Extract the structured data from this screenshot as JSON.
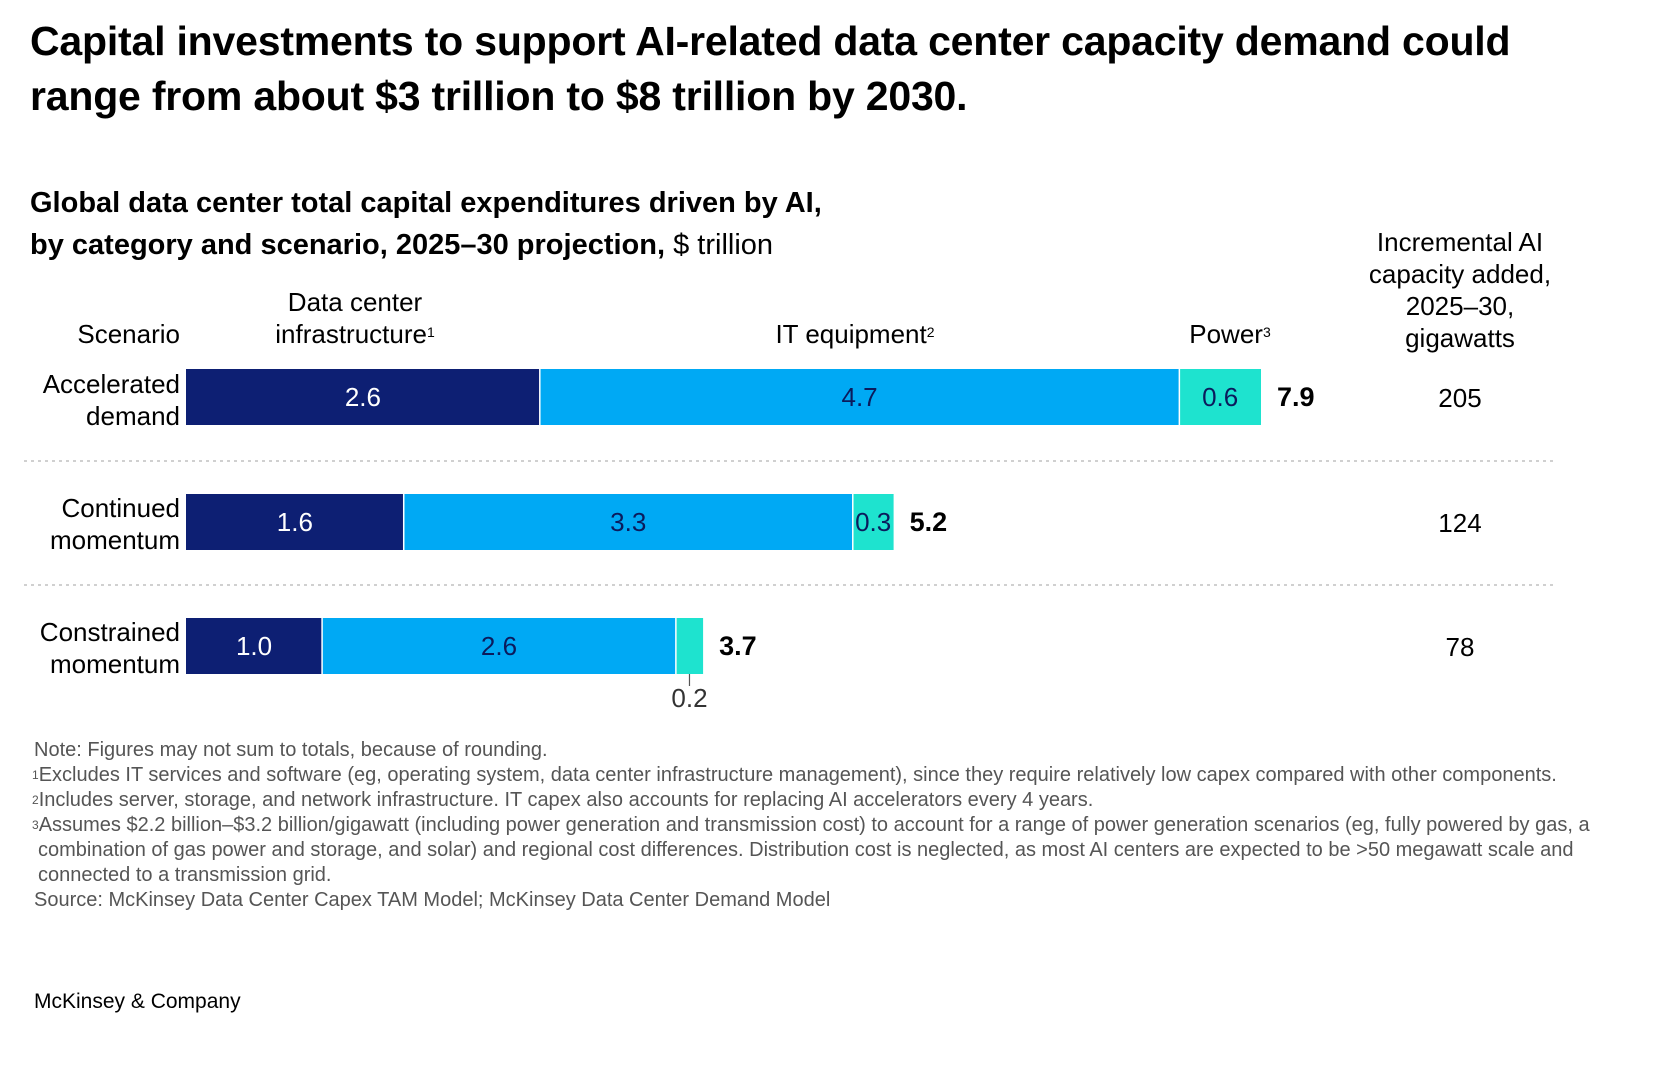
{
  "headline": "Capital investments to support AI-related data center capacity demand could range from about $3 trillion to $8 trillion by 2030.",
  "subtitle": {
    "bold_line1": "Global data center total capital expenditures driven by AI,",
    "bold_line2": "by category and scenario, 2025–30 projection,",
    "unit": " $ trillion"
  },
  "headers": {
    "scenario": "Scenario",
    "infrastructure": "Data center infrastructure",
    "infrastructure_sup": "1",
    "it_equipment": "IT equipment",
    "it_equipment_sup": "2",
    "power": "Power",
    "power_sup": "3",
    "capacity": "Incremental AI capacity added, 2025–30, gigawatts"
  },
  "chart_data": {
    "type": "bar",
    "orientation": "horizontal",
    "stacked": true,
    "categories": [
      "Accelerated demand",
      "Continued momentum",
      "Constrained momentum"
    ],
    "series": [
      {
        "name": "Data center infrastructure",
        "color": "#0d1f73",
        "values": [
          2.6,
          1.6,
          1.0
        ],
        "labels": [
          "2.6",
          "1.6",
          "1.0"
        ]
      },
      {
        "name": "IT equipment",
        "color": "#00a9f4",
        "values": [
          4.7,
          3.3,
          2.6
        ],
        "labels": [
          "4.7",
          "3.3",
          "2.6"
        ]
      },
      {
        "name": "Power",
        "color": "#1ee3cf",
        "values": [
          0.6,
          0.3,
          0.2
        ],
        "labels": [
          "0.6",
          "0.3",
          "0.2"
        ]
      }
    ],
    "totals": [
      "7.9",
      "5.2",
      "3.7"
    ],
    "capacity_gw": [
      "205",
      "124",
      "78"
    ],
    "xlim": [
      0,
      7.9
    ]
  },
  "notes": {
    "note": "Note: Figures may not sum to totals, because of rounding.",
    "fn1_sup": "1",
    "fn1": "Excludes IT services and software (eg, operating system, data center infrastructure management), since they require relatively low capex compared with other components.",
    "fn2_sup": "2",
    "fn2": "Includes server, storage, and network infrastructure. IT capex also accounts for replacing AI accelerators every 4 years.",
    "fn3_sup": "3",
    "fn3": "Assumes $2.2 billion–$3.2 billion/gigawatt (including power generation and transmission cost) to account for a range of power generation scenarios (eg, fully powered by gas, a combination of gas power and storage, and solar) and regional cost differences. Distribution cost is neglected, as most AI centers are expected to be >50 megawatt scale and connected to a transmission grid.",
    "source": "Source: McKinsey Data Center Capex TAM Model; McKinsey Data Center Demand Model"
  },
  "brand": "McKinsey & Company"
}
